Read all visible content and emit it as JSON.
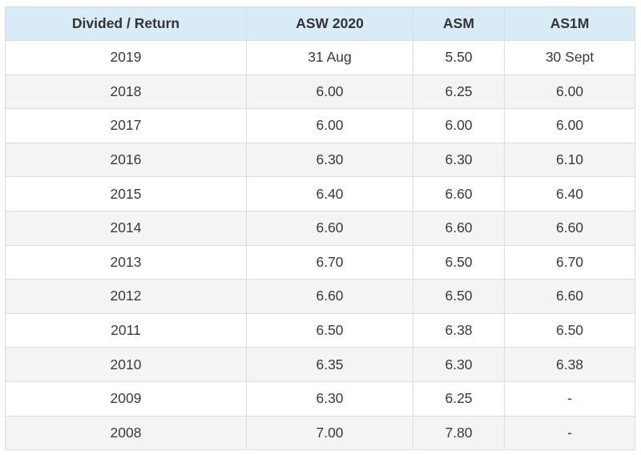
{
  "table": {
    "headers": [
      "Divided / Return",
      "ASW 2020",
      "ASM",
      "AS1M"
    ],
    "rows": [
      [
        "2019",
        "31 Aug",
        "5.50",
        "30 Sept"
      ],
      [
        "2018",
        "6.00",
        "6.25",
        "6.00"
      ],
      [
        "2017",
        "6.00",
        "6.00",
        "6.00"
      ],
      [
        "2016",
        "6.30",
        "6.30",
        "6.10"
      ],
      [
        "2015",
        "6.40",
        "6.60",
        "6.40"
      ],
      [
        "2014",
        "6.60",
        "6.60",
        "6.60"
      ],
      [
        "2013",
        "6.70",
        "6.50",
        "6.70"
      ],
      [
        "2012",
        "6.60",
        "6.50",
        "6.60"
      ],
      [
        "2011",
        "6.50",
        "6.38",
        "6.50"
      ],
      [
        "2010",
        "6.35",
        "6.30",
        "6.38"
      ],
      [
        "2009",
        "6.30",
        "6.25",
        "-"
      ],
      [
        "2008",
        "7.00",
        "7.80",
        "-"
      ]
    ]
  },
  "colors": {
    "header_bg": "#d9ebf7",
    "stripe_bg": "#f4f4f4",
    "border": "#d7dde3"
  }
}
